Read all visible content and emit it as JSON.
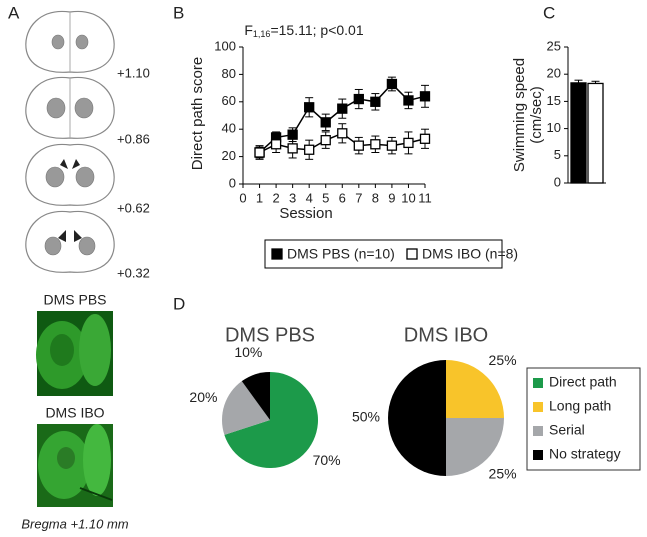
{
  "panel_labels": [
    "A",
    "B",
    "C",
    "D"
  ],
  "atlas": {
    "levels": [
      "+1.10",
      "+0.86",
      "+0.62",
      "+0.32"
    ],
    "image_labels": [
      "DMS PBS",
      "DMS IBO"
    ],
    "caption": "Bregma +1.10 mm"
  },
  "chart_data": [
    {
      "type": "line",
      "title": {
        "main": "F",
        "subscript": "1,16",
        "rest": "=15.11; p<0.01"
      },
      "x_label": "Session",
      "y_label": "Direct path score",
      "x": [
        1,
        2,
        3,
        4,
        5,
        6,
        7,
        8,
        9,
        10,
        11
      ],
      "xlim": [
        0,
        11
      ],
      "xticks": [
        0,
        1,
        2,
        3,
        4,
        5,
        6,
        7,
        8,
        9,
        10,
        11
      ],
      "ylim": [
        0,
        100
      ],
      "yticks": [
        0,
        20,
        40,
        60,
        80,
        100
      ],
      "series": [
        {
          "name": "DMS PBS (n=10)",
          "color": "#000000",
          "marker_fill": "#000000",
          "values": [
            23,
            34,
            36,
            56,
            45,
            55,
            62,
            60,
            73,
            61,
            64
          ],
          "errors": [
            4,
            4,
            5,
            7,
            6,
            7,
            7,
            6,
            5,
            6,
            8
          ]
        },
        {
          "name": "DMS IBO (n=8)",
          "color": "#000000",
          "marker_fill": "#ffffff",
          "values": [
            23,
            29,
            26,
            25,
            32,
            37,
            28,
            29,
            28,
            30,
            33
          ],
          "errors": [
            5,
            6,
            7,
            7,
            6,
            7,
            6,
            6,
            6,
            8,
            7
          ]
        }
      ]
    },
    {
      "type": "bar",
      "y_label": [
        "Swimming speed",
        "(cm/sec)"
      ],
      "categories": [
        null,
        null
      ],
      "values": [
        18.4,
        18.3
      ],
      "errors": [
        0.5,
        0.4
      ],
      "colors": [
        "#000000",
        "#ffffff"
      ],
      "ylim": [
        0,
        25
      ],
      "yticks": [
        0,
        5,
        10,
        15,
        20,
        25
      ]
    },
    {
      "type": "pie",
      "title": "DMS PBS",
      "colors": [
        "#1c9a4a",
        "#f8c42a",
        "#a5a7aa",
        "#000000"
      ],
      "values": [
        70,
        0,
        20,
        10
      ],
      "value_labels": [
        "70%",
        null,
        "20%",
        "10%"
      ]
    },
    {
      "type": "pie",
      "title": "DMS IBO",
      "categories": [
        "Direct path",
        "Long path",
        "Serial",
        "No strategy"
      ],
      "colors": [
        "#1c9a4a",
        "#f8c42a",
        "#a5a7aa",
        "#000000"
      ],
      "values": [
        0,
        25,
        25,
        50
      ],
      "value_labels": [
        null,
        "25%",
        "25%",
        "50%"
      ],
      "legend": true
    }
  ]
}
